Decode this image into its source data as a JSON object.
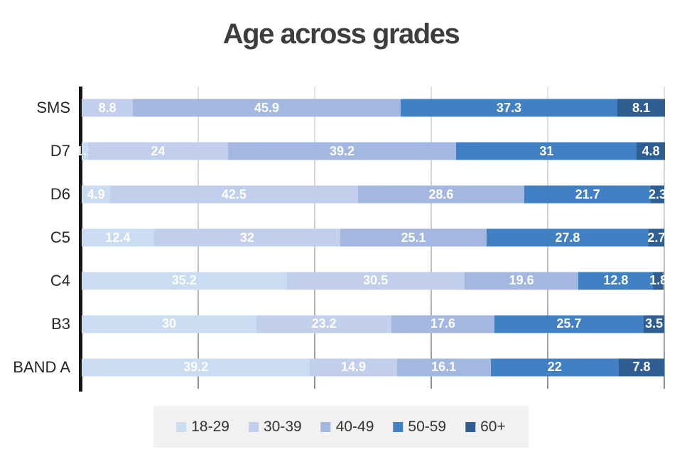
{
  "title": "Age across grades",
  "colors": {
    "title_text": "#3d3d3d",
    "category_text": "#262626",
    "value_text": "#ffffff",
    "axis": "#161616",
    "gridline": "#c9c9c9",
    "legend_bg": "#f1f1f1",
    "legend_text": "#333333",
    "background": "#ffffff"
  },
  "chart_data": {
    "type": "bar",
    "orientation": "horizontal",
    "stacked": true,
    "title": "Age across grades",
    "xlabel": "",
    "ylabel": "",
    "xlim": [
      0,
      100
    ],
    "grid": true,
    "gridlines_percent": [
      20,
      40,
      60,
      80,
      100
    ],
    "legend_position": "bottom",
    "categories": [
      "SMS",
      "D7",
      "D6",
      "C5",
      "C4",
      "B3",
      "BAND A"
    ],
    "series": [
      {
        "name": "18-29",
        "color": "#c9dcf1",
        "values": [
          0,
          1.1,
          4.9,
          12.4,
          35.2,
          30,
          39.2
        ]
      },
      {
        "name": "30-39",
        "color": "#c1cfec",
        "values": [
          8.8,
          24,
          42.5,
          32,
          30.5,
          23.2,
          14.9
        ]
      },
      {
        "name": "40-49",
        "color": "#a3b7e1",
        "values": [
          45.9,
          39.2,
          28.6,
          25.1,
          19.6,
          17.6,
          16.1
        ]
      },
      {
        "name": "50-59",
        "color": "#4181c3",
        "values": [
          37.3,
          31,
          21.7,
          27.8,
          12.8,
          25.7,
          22
        ]
      },
      {
        "name": "60+",
        "color": "#2e5e92",
        "values": [
          8.1,
          4.8,
          2.3,
          2.7,
          1.8,
          3.5,
          7.8
        ]
      }
    ]
  }
}
